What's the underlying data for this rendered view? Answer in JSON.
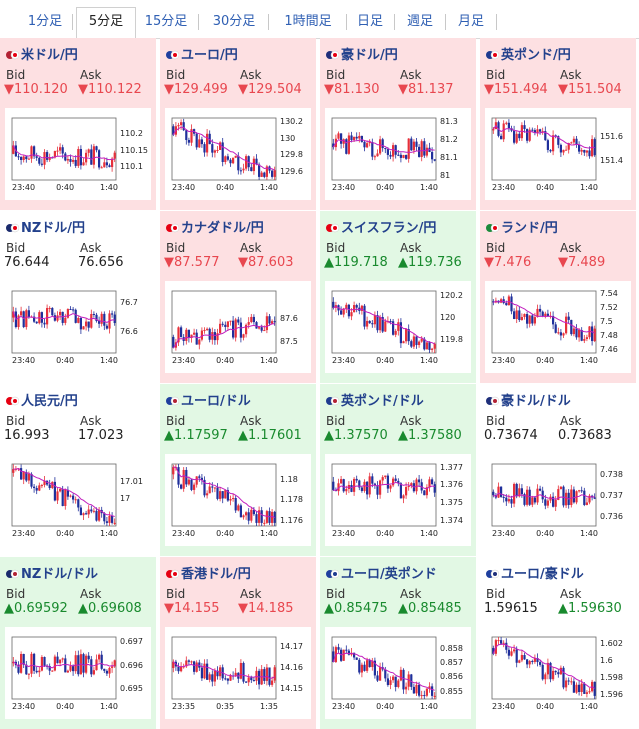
{
  "timeframe_tabs": [
    {
      "label": "1分足",
      "active": false
    },
    {
      "label": "5分足",
      "active": true
    },
    {
      "label": "15分足",
      "active": false
    },
    {
      "label": "30分足",
      "active": false
    },
    {
      "label": "1時間足",
      "active": false
    },
    {
      "label": "日足",
      "active": false
    },
    {
      "label": "週足",
      "active": false
    },
    {
      "label": "月足",
      "active": false
    }
  ],
  "labels": {
    "bid": "Bid",
    "ask": "Ask"
  },
  "colors": {
    "down_bg": "#fde0e2",
    "up_bg": "#e2f8e4",
    "down_text": "#e8474f",
    "up_text": "#198a2e",
    "candle_up": "#e6303a",
    "candle_down": "#1f2f9b",
    "ma": "#c21fbf"
  },
  "panels": [
    {
      "pair": "米ドル/円",
      "flag": "us-jp",
      "trend": "down",
      "bid": "▼110.120",
      "ask": "▼110.122",
      "y_ticks": [
        "110.2",
        "110.15",
        "110.1"
      ],
      "x_ticks": [
        "23:40",
        "0:40",
        "1:40"
      ],
      "chart": {
        "min": 110.06,
        "max": 110.25,
        "start": 110.14,
        "end": 110.13
      }
    },
    {
      "pair": "ユーロ/円",
      "flag": "eu-jp",
      "trend": "down",
      "bid": "▼129.499",
      "ask": "▼129.504",
      "y_ticks": [
        "130.2",
        "130",
        "129.8",
        "129.6"
      ],
      "x_ticks": [
        "23:40",
        "0:40",
        "1:40"
      ],
      "chart": {
        "min": 129.5,
        "max": 130.25,
        "start": 130.15,
        "end": 129.52
      }
    },
    {
      "pair": "豪ドル/円",
      "flag": "au-jp",
      "trend": "down",
      "bid": "▼81.130",
      "ask": "▼81.137",
      "y_ticks": [
        "81.3",
        "81.2",
        "81.1",
        "81"
      ],
      "x_ticks": [
        "23:40",
        "0:40",
        "1:40"
      ],
      "chart": {
        "min": 80.98,
        "max": 81.32,
        "start": 81.18,
        "end": 81.14
      }
    },
    {
      "pair": "英ポンド/円",
      "flag": "gb-jp",
      "trend": "down",
      "bid": "▼151.494",
      "ask": "▼151.504",
      "y_ticks": [
        "151.6",
        "151.4"
      ],
      "x_ticks": [
        "23:40",
        "0:40",
        "1:40"
      ],
      "chart": {
        "min": 151.25,
        "max": 151.75,
        "start": 151.65,
        "end": 151.5
      }
    },
    {
      "pair": "NZドル/円",
      "flag": "nz-jp",
      "trend": "flat",
      "bid": "76.644",
      "ask": "76.656",
      "y_ticks": [
        "76.7",
        "76.6"
      ],
      "x_ticks": [
        "23:40",
        "0:40",
        "1:40"
      ],
      "chart": {
        "min": 76.53,
        "max": 76.74,
        "start": 76.65,
        "end": 76.64
      }
    },
    {
      "pair": "カナダドル/円",
      "flag": "ca-jp",
      "trend": "down",
      "bid": "▼87.577",
      "ask": "▼87.603",
      "y_ticks": [
        "87.6",
        "87.5"
      ],
      "x_ticks": [
        "23:40",
        "0:40",
        "1:40"
      ],
      "chart": {
        "min": 87.45,
        "max": 87.72,
        "start": 87.52,
        "end": 87.58
      }
    },
    {
      "pair": "スイスフラン/円",
      "flag": "ch-jp",
      "trend": "up",
      "bid": "▲119.718",
      "ask": "▲119.736",
      "y_ticks": [
        "120.2",
        "120",
        "119.8"
      ],
      "x_ticks": [
        "23:40",
        "0:40",
        "1:40"
      ],
      "chart": {
        "min": 119.68,
        "max": 120.25,
        "start": 120.15,
        "end": 119.72
      }
    },
    {
      "pair": "ランド/円",
      "flag": "za-jp",
      "trend": "down",
      "bid": "▼7.476",
      "ask": "▼7.489",
      "y_ticks": [
        "7.54",
        "7.52",
        "7.5",
        "7.48",
        "7.46"
      ],
      "x_ticks": [
        "23:40",
        "0:40",
        "1:40"
      ],
      "chart": {
        "min": 7.455,
        "max": 7.545,
        "start": 7.53,
        "end": 7.478
      }
    },
    {
      "pair": "人民元/円",
      "flag": "cn-jp",
      "trend": "flat",
      "bid": "16.993",
      "ask": "17.023",
      "y_ticks": [
        "17.01",
        "17"
      ],
      "x_ticks": [
        "23:40",
        "0:40",
        "1:40"
      ],
      "chart": {
        "min": 16.985,
        "max": 17.02,
        "start": 17.015,
        "end": 16.988
      }
    },
    {
      "pair": "ユーロ/ドル",
      "flag": "eu-us",
      "trend": "up",
      "bid": "▲1.17597",
      "ask": "▲1.17601",
      "y_ticks": [
        "1.18",
        "1.178",
        "1.176"
      ],
      "x_ticks": [
        "23:40",
        "0:40",
        "1:40"
      ],
      "chart": {
        "min": 1.1755,
        "max": 1.1815,
        "start": 1.1805,
        "end": 1.1758
      }
    },
    {
      "pair": "英ポンド/ドル",
      "flag": "gb-us",
      "trend": "up",
      "bid": "▲1.37570",
      "ask": "▲1.37580",
      "y_ticks": [
        "1.377",
        "1.376",
        "1.375",
        "1.374"
      ],
      "x_ticks": [
        "23:40",
        "0:40",
        "1:40"
      ],
      "chart": {
        "min": 1.3737,
        "max": 1.3772,
        "start": 1.3762,
        "end": 1.3757
      }
    },
    {
      "pair": "豪ドル/ドル",
      "flag": "au-us",
      "trend": "flat",
      "bid": "0.73674",
      "ask": "0.73683",
      "y_ticks": [
        "0.738",
        "0.737",
        "0.736"
      ],
      "x_ticks": [
        "23:40",
        "0:40",
        "1:40"
      ],
      "chart": {
        "min": 0.7356,
        "max": 0.7385,
        "start": 0.7372,
        "end": 0.7368
      }
    },
    {
      "pair": "NZドル/ドル",
      "flag": "nz-us",
      "trend": "up",
      "bid": "▲0.69592",
      "ask": "▲0.69608",
      "y_ticks": [
        "0.697",
        "0.696",
        "0.695"
      ],
      "x_ticks": [
        "23:40",
        "0:40",
        "1:40"
      ],
      "chart": {
        "min": 0.6946,
        "max": 0.6972,
        "start": 0.6961,
        "end": 0.696
      }
    },
    {
      "pair": "香港ドル/円",
      "flag": "hk-jp",
      "trend": "down",
      "bid": "▼14.155",
      "ask": "▼14.185",
      "y_ticks": [
        "14.17",
        "14.16",
        "14.15"
      ],
      "x_ticks": [
        "23:35",
        "0:35",
        "1:35"
      ],
      "chart": {
        "min": 14.145,
        "max": 14.175,
        "start": 14.16,
        "end": 14.156
      }
    },
    {
      "pair": "ユーロ/英ポンド",
      "flag": "eu-gb",
      "trend": "up",
      "bid": "▲0.85475",
      "ask": "▲0.85485",
      "y_ticks": [
        "0.858",
        "0.857",
        "0.856",
        "0.855"
      ],
      "x_ticks": [
        "23:40",
        "0:40",
        "1:40"
      ],
      "chart": {
        "min": 0.8545,
        "max": 0.8588,
        "start": 0.8578,
        "end": 0.8548
      }
    },
    {
      "pair": "ユーロ/豪ドル",
      "flag": "eu-au",
      "trend": "flat",
      "bid": "1.59615",
      "ask": "▲1.59630",
      "ask_trend": "up",
      "y_ticks": [
        "1.602",
        "1.6",
        "1.598",
        "1.596"
      ],
      "x_ticks": [
        "23:40",
        "0:40",
        "1:40"
      ],
      "chart": {
        "min": 1.5955,
        "max": 1.6028,
        "start": 1.6015,
        "end": 1.5962
      }
    }
  ]
}
